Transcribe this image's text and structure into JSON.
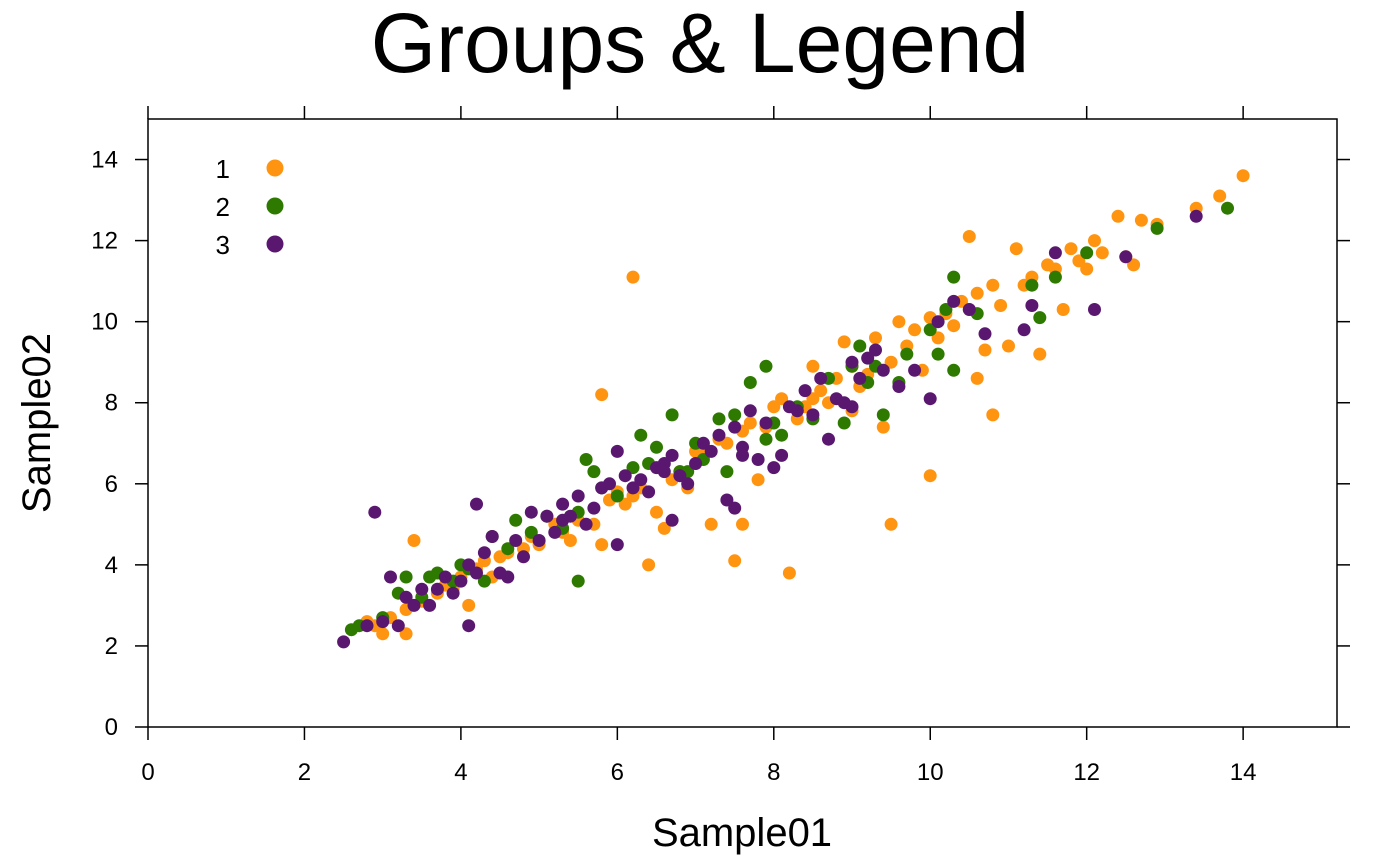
{
  "chart_data": {
    "type": "scatter",
    "title": "Groups & Legend",
    "xlabel": "Sample01",
    "ylabel": "Sample02",
    "xlim": [
      0,
      15.2
    ],
    "ylim": [
      0,
      15
    ],
    "xticks": [
      0,
      2,
      4,
      6,
      8,
      10,
      12,
      14
    ],
    "yticks": [
      0,
      2,
      4,
      6,
      8,
      10,
      12,
      14
    ],
    "grid": false,
    "legend": {
      "position": "top-left",
      "entries": [
        "1",
        "2",
        "3"
      ]
    },
    "series": [
      {
        "name": "1",
        "color": "#FF9410",
        "points": [
          [
            2.8,
            2.6
          ],
          [
            2.9,
            2.5
          ],
          [
            3.0,
            2.3
          ],
          [
            3.1,
            2.7
          ],
          [
            3.3,
            2.3
          ],
          [
            3.3,
            2.9
          ],
          [
            3.4,
            4.6
          ],
          [
            3.5,
            3.1
          ],
          [
            3.7,
            3.3
          ],
          [
            3.8,
            3.5
          ],
          [
            3.9,
            3.4
          ],
          [
            4.0,
            3.7
          ],
          [
            4.1,
            3.0
          ],
          [
            4.2,
            3.9
          ],
          [
            4.3,
            4.1
          ],
          [
            4.4,
            3.7
          ],
          [
            4.5,
            4.2
          ],
          [
            4.6,
            4.3
          ],
          [
            4.8,
            4.4
          ],
          [
            4.9,
            4.7
          ],
          [
            5.0,
            4.5
          ],
          [
            5.2,
            5.0
          ],
          [
            5.3,
            4.8
          ],
          [
            5.4,
            4.6
          ],
          [
            5.5,
            5.1
          ],
          [
            5.7,
            5.0
          ],
          [
            5.8,
            4.5
          ],
          [
            5.8,
            8.2
          ],
          [
            5.9,
            5.6
          ],
          [
            6.0,
            5.8
          ],
          [
            6.1,
            5.5
          ],
          [
            6.2,
            11.1
          ],
          [
            6.3,
            5.9
          ],
          [
            6.4,
            4.0
          ],
          [
            6.5,
            5.3
          ],
          [
            6.6,
            4.9
          ],
          [
            6.7,
            6.1
          ],
          [
            6.8,
            6.3
          ],
          [
            6.9,
            5.9
          ],
          [
            7.0,
            6.5
          ],
          [
            7.1,
            6.9
          ],
          [
            7.2,
            5.0
          ],
          [
            7.3,
            7.1
          ],
          [
            7.4,
            7.0
          ],
          [
            7.5,
            4.1
          ],
          [
            7.6,
            5.0
          ],
          [
            7.6,
            7.3
          ],
          [
            7.7,
            7.5
          ],
          [
            7.8,
            6.1
          ],
          [
            7.9,
            7.4
          ],
          [
            8.0,
            7.9
          ],
          [
            8.1,
            8.1
          ],
          [
            8.2,
            3.8
          ],
          [
            8.3,
            7.6
          ],
          [
            8.4,
            7.9
          ],
          [
            8.5,
            8.1
          ],
          [
            8.6,
            8.3
          ],
          [
            8.7,
            8.0
          ],
          [
            8.8,
            8.6
          ],
          [
            8.9,
            9.5
          ],
          [
            9.0,
            8.9
          ],
          [
            9.1,
            8.4
          ],
          [
            9.2,
            8.7
          ],
          [
            9.3,
            9.6
          ],
          [
            9.4,
            7.4
          ],
          [
            9.5,
            5.0
          ],
          [
            9.5,
            9.0
          ],
          [
            9.6,
            10.0
          ],
          [
            9.7,
            9.4
          ],
          [
            9.8,
            9.8
          ],
          [
            9.9,
            8.8
          ],
          [
            10.0,
            6.2
          ],
          [
            10.0,
            10.1
          ],
          [
            10.1,
            9.6
          ],
          [
            10.2,
            10.2
          ],
          [
            10.3,
            9.9
          ],
          [
            10.4,
            10.5
          ],
          [
            10.5,
            10.3
          ],
          [
            10.6,
            8.6
          ],
          [
            10.6,
            10.7
          ],
          [
            10.7,
            9.3
          ],
          [
            10.8,
            7.7
          ],
          [
            10.8,
            10.9
          ],
          [
            10.9,
            10.4
          ],
          [
            11.0,
            9.4
          ],
          [
            11.1,
            11.8
          ],
          [
            11.2,
            10.9
          ],
          [
            11.3,
            11.1
          ],
          [
            11.4,
            9.2
          ],
          [
            11.5,
            11.4
          ],
          [
            11.6,
            11.3
          ],
          [
            11.7,
            10.3
          ],
          [
            11.8,
            11.8
          ],
          [
            11.9,
            11.5
          ],
          [
            12.0,
            11.3
          ],
          [
            12.1,
            12.0
          ],
          [
            12.2,
            11.7
          ],
          [
            12.4,
            12.6
          ],
          [
            12.5,
            11.6
          ],
          [
            12.6,
            11.4
          ],
          [
            12.7,
            12.5
          ],
          [
            12.9,
            12.4
          ],
          [
            13.4,
            12.8
          ],
          [
            13.7,
            13.1
          ],
          [
            14.0,
            13.6
          ],
          [
            10.5,
            12.1
          ],
          [
            9.0,
            7.8
          ],
          [
            8.5,
            8.9
          ],
          [
            7.0,
            6.8
          ],
          [
            6.2,
            5.7
          ]
        ]
      },
      {
        "name": "2",
        "color": "#2E7A00",
        "points": [
          [
            2.6,
            2.4
          ],
          [
            2.7,
            2.5
          ],
          [
            3.0,
            2.7
          ],
          [
            3.2,
            3.3
          ],
          [
            3.3,
            3.7
          ],
          [
            3.5,
            3.2
          ],
          [
            3.6,
            3.7
          ],
          [
            3.7,
            3.8
          ],
          [
            3.9,
            3.6
          ],
          [
            4.0,
            4.0
          ],
          [
            4.1,
            3.9
          ],
          [
            4.3,
            3.6
          ],
          [
            4.4,
            4.7
          ],
          [
            4.6,
            4.4
          ],
          [
            4.7,
            5.1
          ],
          [
            4.9,
            4.8
          ],
          [
            5.1,
            5.2
          ],
          [
            5.3,
            4.9
          ],
          [
            5.5,
            3.6
          ],
          [
            5.5,
            5.3
          ],
          [
            5.6,
            6.6
          ],
          [
            5.7,
            6.3
          ],
          [
            5.8,
            5.9
          ],
          [
            6.0,
            5.7
          ],
          [
            6.2,
            6.4
          ],
          [
            6.3,
            7.2
          ],
          [
            6.4,
            6.5
          ],
          [
            6.5,
            6.9
          ],
          [
            6.7,
            7.7
          ],
          [
            6.8,
            6.3
          ],
          [
            7.0,
            7.0
          ],
          [
            7.1,
            6.6
          ],
          [
            7.3,
            7.6
          ],
          [
            7.4,
            6.3
          ],
          [
            7.5,
            7.7
          ],
          [
            7.7,
            8.5
          ],
          [
            7.9,
            8.9
          ],
          [
            7.9,
            7.1
          ],
          [
            8.1,
            7.2
          ],
          [
            8.3,
            7.9
          ],
          [
            8.5,
            7.6
          ],
          [
            8.7,
            8.6
          ],
          [
            8.9,
            7.5
          ],
          [
            9.0,
            8.9
          ],
          [
            9.1,
            9.4
          ],
          [
            9.3,
            8.9
          ],
          [
            9.4,
            7.7
          ],
          [
            9.6,
            8.5
          ],
          [
            9.7,
            9.2
          ],
          [
            10.0,
            9.8
          ],
          [
            10.1,
            9.2
          ],
          [
            10.2,
            10.3
          ],
          [
            10.3,
            11.1
          ],
          [
            10.3,
            8.8
          ],
          [
            10.6,
            10.2
          ],
          [
            11.3,
            10.9
          ],
          [
            11.4,
            10.1
          ],
          [
            11.6,
            11.1
          ],
          [
            12.0,
            11.7
          ],
          [
            12.9,
            12.3
          ],
          [
            13.8,
            12.8
          ],
          [
            9.2,
            8.5
          ],
          [
            8.0,
            7.5
          ],
          [
            6.9,
            6.3
          ]
        ]
      },
      {
        "name": "3",
        "color": "#5A1770",
        "points": [
          [
            2.5,
            2.1
          ],
          [
            2.8,
            2.5
          ],
          [
            2.9,
            5.3
          ],
          [
            3.0,
            2.6
          ],
          [
            3.1,
            3.7
          ],
          [
            3.2,
            2.5
          ],
          [
            3.3,
            3.2
          ],
          [
            3.4,
            3.0
          ],
          [
            3.5,
            3.4
          ],
          [
            3.6,
            3.0
          ],
          [
            3.7,
            3.4
          ],
          [
            3.8,
            3.7
          ],
          [
            3.9,
            3.3
          ],
          [
            4.0,
            3.6
          ],
          [
            4.1,
            2.5
          ],
          [
            4.1,
            4.0
          ],
          [
            4.2,
            5.5
          ],
          [
            4.3,
            4.3
          ],
          [
            4.4,
            4.7
          ],
          [
            4.5,
            3.8
          ],
          [
            4.6,
            3.7
          ],
          [
            4.7,
            4.6
          ],
          [
            4.8,
            4.2
          ],
          [
            4.9,
            5.3
          ],
          [
            5.0,
            4.6
          ],
          [
            5.1,
            5.2
          ],
          [
            5.2,
            4.8
          ],
          [
            5.3,
            5.5
          ],
          [
            5.4,
            5.2
          ],
          [
            5.5,
            5.7
          ],
          [
            5.6,
            5.0
          ],
          [
            5.7,
            5.4
          ],
          [
            5.8,
            5.9
          ],
          [
            5.9,
            6.0
          ],
          [
            6.0,
            4.5
          ],
          [
            6.0,
            6.8
          ],
          [
            6.1,
            6.2
          ],
          [
            6.2,
            5.9
          ],
          [
            6.3,
            6.1
          ],
          [
            6.4,
            5.8
          ],
          [
            6.5,
            6.4
          ],
          [
            6.6,
            6.3
          ],
          [
            6.7,
            5.1
          ],
          [
            6.7,
            6.7
          ],
          [
            6.8,
            6.2
          ],
          [
            6.9,
            6.0
          ],
          [
            7.0,
            6.5
          ],
          [
            7.1,
            7.0
          ],
          [
            7.2,
            6.8
          ],
          [
            7.3,
            7.2
          ],
          [
            7.4,
            5.6
          ],
          [
            7.5,
            5.4
          ],
          [
            7.5,
            7.4
          ],
          [
            7.6,
            6.9
          ],
          [
            7.7,
            7.8
          ],
          [
            7.8,
            6.6
          ],
          [
            7.9,
            7.5
          ],
          [
            8.0,
            6.4
          ],
          [
            8.1,
            6.7
          ],
          [
            8.2,
            7.9
          ],
          [
            8.3,
            7.8
          ],
          [
            8.4,
            8.3
          ],
          [
            8.5,
            7.7
          ],
          [
            8.6,
            8.6
          ],
          [
            8.7,
            7.1
          ],
          [
            8.8,
            8.1
          ],
          [
            8.9,
            8.0
          ],
          [
            9.0,
            9.0
          ],
          [
            9.1,
            8.6
          ],
          [
            9.2,
            9.1
          ],
          [
            9.3,
            9.3
          ],
          [
            9.4,
            8.8
          ],
          [
            9.6,
            8.4
          ],
          [
            9.8,
            8.8
          ],
          [
            10.0,
            8.1
          ],
          [
            10.1,
            10.0
          ],
          [
            10.3,
            10.5
          ],
          [
            10.5,
            10.3
          ],
          [
            10.7,
            9.7
          ],
          [
            11.2,
            9.8
          ],
          [
            11.3,
            10.4
          ],
          [
            11.6,
            11.7
          ],
          [
            12.1,
            10.3
          ],
          [
            12.5,
            11.6
          ],
          [
            13.4,
            12.6
          ],
          [
            5.3,
            5.1
          ],
          [
            6.6,
            6.5
          ],
          [
            4.2,
            3.8
          ],
          [
            7.6,
            6.7
          ],
          [
            9.0,
            7.9
          ]
        ]
      }
    ]
  }
}
